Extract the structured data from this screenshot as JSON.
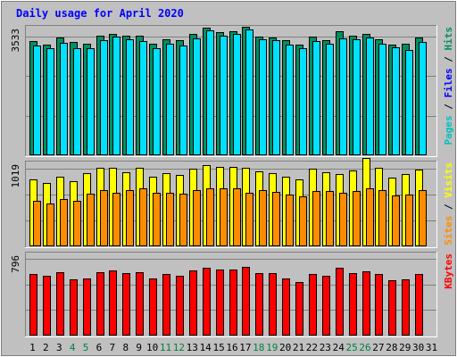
{
  "colors": {
    "background": "#c0c0c0",
    "plot_background": "#c0c0c0",
    "title": "#0000ff",
    "hits_bar": "#008f63",
    "files_bar": "#00e0ff",
    "visits_bar": "#ffff00",
    "sites_bar": "#ff8c00",
    "kbytes_bar": "#ff0000",
    "bar_outline": "#000000",
    "weekend_label": "#008040",
    "weekday_label": "#000000",
    "gridline": "#808080"
  },
  "chart_data": {
    "type": "bar",
    "title": "Daily usage for April 2020",
    "categories": [
      "1",
      "2",
      "3",
      "4",
      "5",
      "6",
      "7",
      "8",
      "9",
      "10",
      "11",
      "12",
      "13",
      "14",
      "15",
      "16",
      "17",
      "18",
      "19",
      "20",
      "21",
      "22",
      "23",
      "24",
      "25",
      "26",
      "27",
      "28",
      "29",
      "30",
      "31"
    ],
    "weekend_days": [
      "4",
      "5",
      "11",
      "12",
      "18",
      "19",
      "25",
      "26"
    ],
    "panels": [
      {
        "name": "pages-files-hits",
        "right_label_parts": [
          {
            "text": "Pages",
            "color": "#00c0c0"
          },
          {
            "text": " / ",
            "color": "#000000"
          },
          {
            "text": "Files",
            "color": "#0000ff"
          },
          {
            "text": " / ",
            "color": "#000000"
          },
          {
            "text": "Hits",
            "color": "#008f63"
          }
        ],
        "ymax_label": "3533",
        "ymax": 3533,
        "series": [
          {
            "name": "Hits",
            "color_key": "hits_bar",
            "offset": 0,
            "values": [
              3410,
              3300,
              3497,
              3374,
              3321,
              3568,
              3600,
              3560,
              3550,
              3320,
              3450,
              3420,
              3600,
              3803,
              3676,
              3690,
              3830,
              3540,
              3510,
              3421,
              3300,
              3530,
              3434,
              3680,
              3570,
              3610,
              3460,
              3300,
              3329,
              3500,
              null
            ]
          },
          {
            "name": "Files",
            "color_key": "files_bar",
            "offset": 1,
            "values": [
              3280,
              3190,
              3360,
              3200,
              3190,
              3424,
              3520,
              3450,
              3400,
              3180,
              3330,
              3270,
              3478,
              3711,
              3550,
              3621,
              3747,
              3441,
              3430,
              3291,
              3200,
              3400,
              3330,
              3470,
              3444,
              3500,
              3312,
              3210,
              3141,
              3380,
              null
            ]
          }
        ]
      },
      {
        "name": "visits-sites",
        "right_label_parts": [
          {
            "text": "Sites",
            "color": "#ff8c00"
          },
          {
            "text": " / ",
            "color": "#000000"
          },
          {
            "text": "Visits",
            "color": "#ffff00"
          }
        ],
        "ymax_label": "1019",
        "ymax": 1019,
        "series": [
          {
            "name": "Visits",
            "color_key": "visits_bar",
            "offset": 0,
            "values": [
              870,
              830,
              910,
              850,
              960,
              1020,
              1020,
              970,
              1030,
              910,
              950,
              930,
              1010,
              1060,
              1040,
              1040,
              1030,
              980,
              950,
              910,
              880,
              1010,
              970,
              940,
              990,
              1150,
              1030,
              900,
              940,
              1000,
              null
            ]
          },
          {
            "name": "Sites",
            "color_key": "sites_bar",
            "offset": 1,
            "values": [
              600,
              560,
              620,
              590,
              690,
              730,
              700,
              740,
              760,
              700,
              700,
              690,
              740,
              760,
              760,
              760,
              700,
              730,
              710,
              680,
              650,
              720,
              720,
              700,
              720,
              760,
              740,
              660,
              680,
              740,
              null
            ]
          }
        ]
      },
      {
        "name": "kbytes",
        "right_label_parts": [
          {
            "text": "KBytes",
            "color": "#ff0000"
          }
        ],
        "ymax_label": "796",
        "ymax": 796,
        "series": [
          {
            "name": "KBytes",
            "color_key": "kbytes_bar",
            "offset": 0,
            "values": [
              640,
              620,
              660,
              590,
              600,
              660,
              680,
              650,
              660,
              594,
              640,
              620,
              680,
              709,
              690,
              687,
              721,
              650,
              650,
              600,
              560,
              640,
              620,
              710,
              650,
              670,
              640,
              575,
              590,
              640,
              null
            ]
          }
        ]
      }
    ]
  }
}
